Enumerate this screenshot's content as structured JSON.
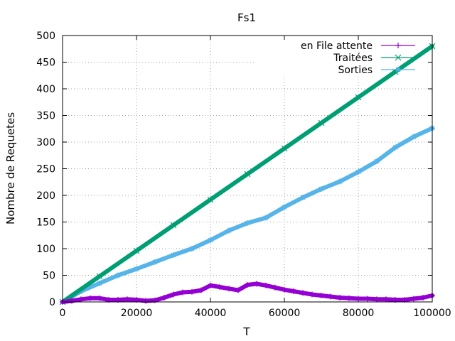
{
  "chart_data": {
    "type": "line",
    "title": "Fs1",
    "xlabel": "T",
    "ylabel": "Nombre de Requetes",
    "xlim": [
      0,
      100000
    ],
    "ylim": [
      0,
      500
    ],
    "xticks": [
      0,
      20000,
      40000,
      60000,
      80000,
      100000
    ],
    "yticks": [
      0,
      50,
      100,
      150,
      200,
      250,
      300,
      350,
      400,
      450,
      500
    ],
    "grid": true,
    "legend_position": "top-right",
    "series": [
      {
        "name": "en File attente",
        "color": "#9400d3",
        "marker": "plus",
        "x": [
          0,
          2500,
          5000,
          7500,
          10000,
          12500,
          15000,
          17500,
          20000,
          22500,
          25000,
          27500,
          30000,
          32500,
          35000,
          37500,
          40000,
          42500,
          45000,
          47500,
          50000,
          52500,
          55000,
          57500,
          60000,
          62500,
          65000,
          67500,
          70000,
          72500,
          75000,
          77500,
          80000,
          82500,
          85000,
          87500,
          90000,
          92500,
          95000,
          97500,
          100000
        ],
        "y": [
          0,
          2,
          5,
          7,
          7,
          4,
          4,
          5,
          4,
          2,
          3,
          8,
          14,
          18,
          19,
          22,
          31,
          28,
          25,
          22,
          32,
          34,
          31,
          27,
          23,
          20,
          17,
          14,
          12,
          10,
          8,
          7,
          6,
          6,
          5,
          5,
          4,
          4,
          6,
          8,
          12
        ]
      },
      {
        "name": "Traitées",
        "color": "#009e73",
        "marker": "cross",
        "x": [
          0,
          10000,
          20000,
          30000,
          40000,
          50000,
          60000,
          70000,
          80000,
          90000,
          100000
        ],
        "y": [
          0,
          48,
          96,
          144,
          192,
          240,
          288,
          336,
          384,
          432,
          480
        ]
      },
      {
        "name": "Sorties",
        "color": "#56b4e9",
        "marker": "star",
        "x": [
          0,
          5000,
          10000,
          15000,
          20000,
          25000,
          30000,
          35000,
          40000,
          45000,
          50000,
          55000,
          60000,
          65000,
          70000,
          75000,
          80000,
          85000,
          90000,
          95000,
          100000
        ],
        "y": [
          0,
          20,
          35,
          50,
          62,
          75,
          88,
          100,
          116,
          134,
          148,
          158,
          178,
          196,
          212,
          226,
          244,
          264,
          290,
          310,
          326
        ]
      }
    ]
  }
}
